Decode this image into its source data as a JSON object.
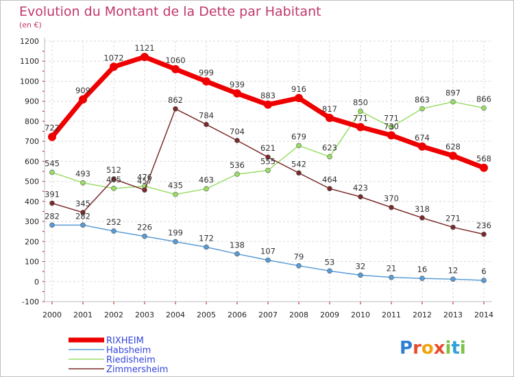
{
  "chart_data": {
    "type": "line",
    "title": "Evolution du Montant de la Dette par Habitant",
    "subtitle": "(en €)",
    "x": [
      "2000",
      "2001",
      "2002",
      "2003",
      "2004",
      "2005",
      "2006",
      "2007",
      "2008",
      "2009",
      "2010",
      "2011",
      "2012",
      "2013",
      "2014"
    ],
    "ylim": [
      -100,
      1200
    ],
    "yticks": [
      -100,
      0,
      100,
      200,
      300,
      400,
      500,
      600,
      700,
      800,
      900,
      1000,
      1100,
      1200
    ],
    "grid": true,
    "legend_position": "bottom-left",
    "series": [
      {
        "name": "RIXHEIM",
        "color": "#ee0000",
        "values": [
          722,
          909,
          1072,
          1121,
          1060,
          999,
          939,
          883,
          916,
          817,
          771,
          730,
          674,
          628,
          568
        ]
      },
      {
        "name": "Habsheim",
        "color": "#5a9bd5",
        "values": [
          282,
          282,
          252,
          226,
          199,
          172,
          138,
          107,
          79,
          53,
          32,
          21,
          16,
          12,
          6
        ]
      },
      {
        "name": "Riedisheim",
        "color": "#99dd66",
        "values": [
          545,
          493,
          465,
          476,
          435,
          463,
          536,
          555,
          679,
          623,
          850,
          771,
          863,
          897,
          866
        ]
      },
      {
        "name": "Zimmersheim",
        "color": "#7a2a2a",
        "values": [
          391,
          345,
          512,
          457,
          862,
          784,
          704,
          621,
          542,
          464,
          423,
          370,
          318,
          271,
          236
        ]
      }
    ]
  },
  "logo": {
    "letters": [
      "P",
      "r",
      "o",
      "x",
      "i",
      "t",
      "i"
    ],
    "colors": [
      "#2f7fd4",
      "#e84b2c",
      "#f2a20c",
      "#e84b2c",
      "#7cc242",
      "#2fa0d8",
      "#7cc242"
    ]
  }
}
